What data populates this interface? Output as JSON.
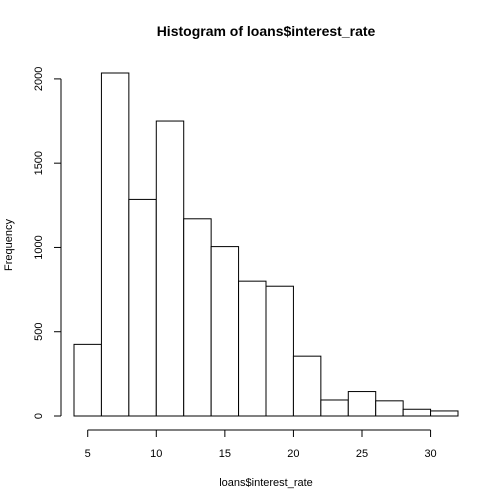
{
  "chart_data": {
    "type": "bar",
    "title": "Histogram of loans$interest_rate",
    "xlabel": "loans$interest_rate",
    "ylabel": "Frequency",
    "bins": [
      {
        "start": 4,
        "end": 6,
        "count": 425
      },
      {
        "start": 6,
        "end": 8,
        "count": 2035
      },
      {
        "start": 8,
        "end": 10,
        "count": 1285
      },
      {
        "start": 10,
        "end": 12,
        "count": 1750
      },
      {
        "start": 12,
        "end": 14,
        "count": 1170
      },
      {
        "start": 14,
        "end": 16,
        "count": 1005
      },
      {
        "start": 16,
        "end": 18,
        "count": 800
      },
      {
        "start": 18,
        "end": 20,
        "count": 770
      },
      {
        "start": 20,
        "end": 22,
        "count": 355
      },
      {
        "start": 22,
        "end": 24,
        "count": 95
      },
      {
        "start": 24,
        "end": 26,
        "count": 145
      },
      {
        "start": 26,
        "end": 28,
        "count": 90
      },
      {
        "start": 28,
        "end": 30,
        "count": 40
      },
      {
        "start": 30,
        "end": 32,
        "count": 30
      }
    ],
    "xticks": [
      5,
      10,
      15,
      20,
      25,
      30
    ],
    "yticks": [
      0,
      500,
      1000,
      1500,
      2000
    ],
    "xlim": [
      4,
      32
    ],
    "ylim": [
      0,
      2035
    ],
    "grid": false
  }
}
